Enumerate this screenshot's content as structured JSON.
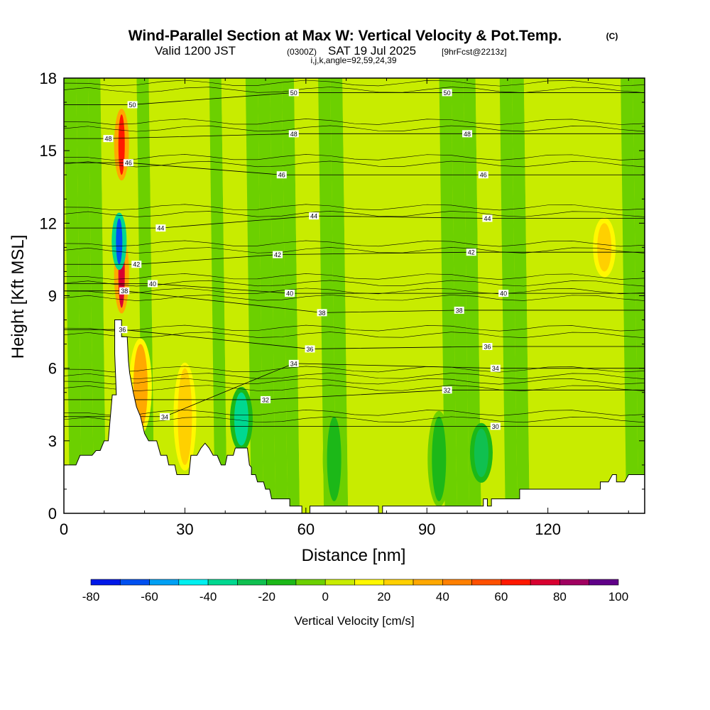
{
  "header": {
    "title": "Wind-Parallel Section at Max W: Vertical Velocity & Pot.Temp.",
    "title_mark": "(C)",
    "valid_prefix": "Valid 1200 JST",
    "valid_utc": "(0300Z)",
    "valid_date": "SAT 19 Jul 2025",
    "forecast": "[9hrFcst@2213z]",
    "indices": "i,j,k,angle=92,59,24,39"
  },
  "chart_data": {
    "type": "heatmap",
    "title": "Wind-Parallel Section at Max W: Vertical Velocity & Pot.Temp.",
    "xlabel": "Distance [nm]",
    "ylabel": "Height [Kft MSL]",
    "xlim": [
      0,
      144
    ],
    "ylim": [
      0,
      18
    ],
    "x_ticks": [
      "0",
      "30",
      "60",
      "90",
      "120"
    ],
    "x_tick_values": [
      0,
      30,
      60,
      90,
      120
    ],
    "y_ticks": [
      "0",
      "3",
      "6",
      "9",
      "12",
      "15",
      "18"
    ],
    "y_tick_values": [
      0,
      3,
      6,
      9,
      12,
      15,
      18
    ],
    "colorbar": {
      "label": "Vertical Velocity [cm/s]",
      "tick_labels": [
        "-80",
        "-60",
        "-40",
        "-20",
        "0",
        "20",
        "40",
        "60",
        "80",
        "100"
      ],
      "tick_values": [
        -80,
        -60,
        -40,
        -20,
        0,
        20,
        40,
        60,
        80,
        100
      ],
      "bins": [
        -80,
        -70,
        -60,
        -50,
        -40,
        -30,
        -20,
        -10,
        0,
        10,
        20,
        30,
        40,
        50,
        60,
        70,
        80,
        90,
        100
      ],
      "colors": [
        "#0018e8",
        "#0050f0",
        "#00a0f4",
        "#00f0f0",
        "#00d890",
        "#10c050",
        "#1cb818",
        "#6cd000",
        "#c8ec00",
        "#fff800",
        "#ffd000",
        "#ffa800",
        "#ff8000",
        "#ff5000",
        "#ff1800",
        "#d80030",
        "#a00060",
        "#600088"
      ]
    },
    "terrain_height_kft": [
      [
        0,
        2.0
      ],
      [
        3,
        2.0
      ],
      [
        4,
        2.4
      ],
      [
        7,
        2.4
      ],
      [
        8,
        2.6
      ],
      [
        9,
        2.6
      ],
      [
        10,
        3.0
      ],
      [
        11,
        3.0
      ],
      [
        12,
        4.9
      ],
      [
        13,
        4.9
      ],
      [
        12.6,
        6.6
      ],
      [
        12.6,
        8.0
      ],
      [
        14.3,
        8.0
      ],
      [
        14.3,
        7.3
      ],
      [
        15.7,
        7.3
      ],
      [
        16,
        6.3
      ],
      [
        16.3,
        5.8
      ],
      [
        17.2,
        5.0
      ],
      [
        18,
        4.4
      ],
      [
        19,
        4.0
      ],
      [
        20,
        3.3
      ],
      [
        21,
        3.0
      ],
      [
        23,
        3.0
      ],
      [
        24,
        2.4
      ],
      [
        25.5,
        2.4
      ],
      [
        26,
        2.0
      ],
      [
        27.5,
        2.0
      ],
      [
        28,
        1.6
      ],
      [
        31,
        1.6
      ],
      [
        31.5,
        2.4
      ],
      [
        33,
        2.4
      ],
      [
        34,
        2.7
      ],
      [
        35,
        2.9
      ],
      [
        36,
        2.7
      ],
      [
        37,
        2.4
      ],
      [
        38,
        2.4
      ],
      [
        39,
        2.0
      ],
      [
        40,
        2.0
      ],
      [
        40.5,
        2.4
      ],
      [
        42,
        2.4
      ],
      [
        42.5,
        2.7
      ],
      [
        45.5,
        2.7
      ],
      [
        46,
        2.0
      ],
      [
        46.5,
        1.9
      ],
      [
        46.5,
        1.6
      ],
      [
        47.5,
        1.6
      ],
      [
        48,
        1.3
      ],
      [
        49.5,
        1.3
      ],
      [
        50,
        1.0
      ],
      [
        51,
        1.0
      ],
      [
        51.5,
        0.6
      ],
      [
        56,
        0.6
      ],
      [
        56,
        0.3
      ],
      [
        59,
        0.3
      ],
      [
        59,
        0.0
      ],
      [
        61,
        0.0
      ],
      [
        61,
        0.3
      ],
      [
        78,
        0.3
      ],
      [
        78,
        0.0
      ],
      [
        79,
        0.0
      ],
      [
        79,
        0.3
      ],
      [
        104,
        0.3
      ],
      [
        104,
        0.6
      ],
      [
        105,
        0.6
      ],
      [
        105,
        0.3
      ],
      [
        106,
        0.3
      ],
      [
        106,
        0.6
      ],
      [
        113,
        0.6
      ],
      [
        113,
        1.0
      ],
      [
        133,
        1.0
      ],
      [
        133,
        1.3
      ],
      [
        135,
        1.3
      ],
      [
        136,
        1.6
      ],
      [
        137,
        1.6
      ],
      [
        137,
        1.3
      ],
      [
        139,
        1.3
      ],
      [
        140,
        1.6
      ],
      [
        144,
        1.6
      ]
    ],
    "vertical_velocity_features": [
      {
        "x_center": 14.3,
        "y_from": 8.5,
        "y_to": 11.3,
        "value": 75
      },
      {
        "x_center": 14.3,
        "y_from": 14.0,
        "y_to": 16.5,
        "value": 65
      },
      {
        "x_center": 13.7,
        "y_from": 10.3,
        "y_to": 12.2,
        "value": -65
      },
      {
        "x_center": 19.0,
        "y_from": 3.5,
        "y_to": 7.0,
        "value": 30
      },
      {
        "x_center": 30.0,
        "y_from": 2.0,
        "y_to": 6.0,
        "value": 20
      },
      {
        "x_center": 44.0,
        "y_from": 2.8,
        "y_to": 5.0,
        "value": -35
      },
      {
        "x_center": 67.0,
        "y_from": 0.5,
        "y_to": 4.0,
        "value": -20
      },
      {
        "x_center": 93.0,
        "y_from": 0.5,
        "y_to": 4.0,
        "value": -20
      },
      {
        "x_center": 103.5,
        "y_from": 1.5,
        "y_to": 3.5,
        "value": -30
      },
      {
        "x_center": 134.0,
        "y_from": 10.0,
        "y_to": 12.0,
        "value": 20
      }
    ],
    "theta_contour_labels": [
      {
        "text": "50",
        "x": 57,
        "y": 17.4
      },
      {
        "text": "50",
        "x": 95,
        "y": 17.4
      },
      {
        "text": "50",
        "x": 17,
        "y": 16.9
      },
      {
        "text": "48",
        "x": 57,
        "y": 15.7
      },
      {
        "text": "48",
        "x": 100,
        "y": 15.7
      },
      {
        "text": "48",
        "x": 11,
        "y": 15.5
      },
      {
        "text": "46",
        "x": 16,
        "y": 14.5
      },
      {
        "text": "46",
        "x": 54,
        "y": 14.0
      },
      {
        "text": "46",
        "x": 104,
        "y": 14.0
      },
      {
        "text": "44",
        "x": 62,
        "y": 12.3
      },
      {
        "text": "44",
        "x": 105,
        "y": 12.2
      },
      {
        "text": "44",
        "x": 24,
        "y": 11.8
      },
      {
        "text": "42",
        "x": 53,
        "y": 10.7
      },
      {
        "text": "42",
        "x": 101,
        "y": 10.8
      },
      {
        "text": "42",
        "x": 18,
        "y": 10.3
      },
      {
        "text": "40",
        "x": 22,
        "y": 9.5
      },
      {
        "text": "40",
        "x": 56,
        "y": 9.1
      },
      {
        "text": "40",
        "x": 109,
        "y": 9.1
      },
      {
        "text": "38",
        "x": 15,
        "y": 9.2
      },
      {
        "text": "38",
        "x": 64,
        "y": 8.3
      },
      {
        "text": "38",
        "x": 98,
        "y": 8.4
      },
      {
        "text": "36",
        "x": 14.5,
        "y": 7.6
      },
      {
        "text": "36",
        "x": 61,
        "y": 6.8
      },
      {
        "text": "36",
        "x": 105,
        "y": 6.9
      },
      {
        "text": "34",
        "x": 57,
        "y": 6.2
      },
      {
        "text": "34",
        "x": 107,
        "y": 6.0
      },
      {
        "text": "34",
        "x": 25,
        "y": 4.0
      },
      {
        "text": "32",
        "x": 95,
        "y": 5.1
      },
      {
        "text": "32",
        "x": 50,
        "y": 4.7
      },
      {
        "text": "30",
        "x": 107,
        "y": 3.6
      }
    ]
  }
}
